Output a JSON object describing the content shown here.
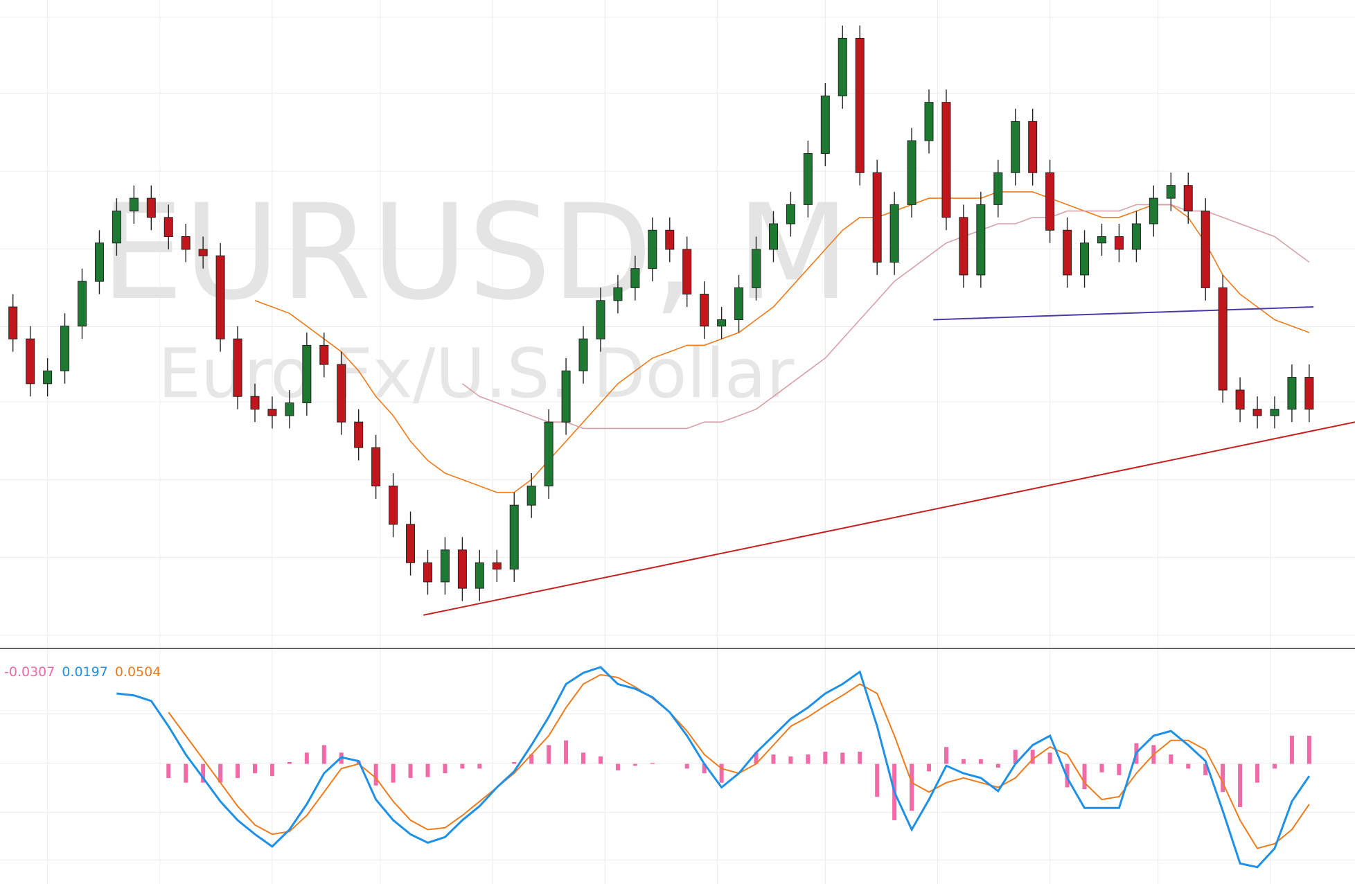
{
  "chart_data": [
    {
      "type": "candlestick",
      "title": "EURUSD, M",
      "subtitle": "Euro Fx/U.S. Dollar",
      "xlim": [
        -0.75,
        77.65
      ],
      "ylim": [
        0,
        100
      ],
      "up_color": "#1e7a32",
      "down_color": "#c0161c",
      "open": [
        52,
        47,
        40,
        42,
        49,
        56,
        62,
        67,
        69,
        66,
        63,
        61,
        60,
        47,
        38,
        36,
        35,
        37,
        46,
        43,
        34,
        30,
        24,
        18,
        12,
        9,
        14,
        8,
        12,
        11,
        21,
        24,
        34,
        42,
        47,
        53,
        55,
        58,
        64,
        61,
        54,
        49,
        50,
        55,
        61,
        65,
        68,
        76,
        85,
        94,
        73,
        59,
        68,
        78,
        84,
        66,
        57,
        68,
        73,
        81,
        73,
        64,
        57,
        62,
        63,
        61,
        65,
        69,
        71,
        67,
        55,
        39,
        36,
        35,
        36,
        41
      ],
      "high": [
        54,
        49,
        44,
        51,
        58,
        64,
        69,
        71,
        71,
        68,
        65,
        63,
        62,
        49,
        40,
        38,
        39,
        48,
        48,
        45,
        36,
        32,
        26,
        20,
        14,
        16,
        16,
        14,
        14,
        23,
        26,
        36,
        44,
        49,
        55,
        57,
        60,
        66,
        66,
        63,
        56,
        52,
        57,
        63,
        67,
        70,
        78,
        87,
        96,
        96,
        75,
        70,
        80,
        86,
        86,
        68,
        70,
        75,
        83,
        83,
        75,
        66,
        64,
        65,
        65,
        67,
        71,
        73,
        73,
        69,
        57,
        41,
        38,
        38,
        43,
        43
      ],
      "low": [
        45,
        38,
        38,
        40,
        47,
        54,
        60,
        65,
        64,
        61,
        59,
        58,
        45,
        36,
        34,
        33,
        33,
        35,
        41,
        32,
        28,
        22,
        16,
        10,
        7,
        7,
        6,
        6,
        9,
        9,
        19,
        22,
        32,
        40,
        45,
        51,
        53,
        56,
        59,
        52,
        47,
        47,
        48,
        53,
        59,
        63,
        66,
        74,
        83,
        71,
        57,
        57,
        66,
        76,
        64,
        55,
        55,
        66,
        71,
        71,
        62,
        55,
        55,
        60,
        59,
        59,
        63,
        67,
        65,
        53,
        37,
        34,
        33,
        33,
        34,
        34
      ],
      "close": [
        47,
        40,
        42,
        49,
        56,
        62,
        67,
        69,
        66,
        63,
        61,
        60,
        47,
        38,
        36,
        35,
        37,
        46,
        43,
        34,
        30,
        24,
        18,
        12,
        9,
        14,
        8,
        12,
        11,
        21,
        24,
        34,
        42,
        47,
        53,
        55,
        58,
        64,
        61,
        54,
        49,
        50,
        55,
        61,
        65,
        68,
        76,
        85,
        94,
        73,
        59,
        68,
        78,
        84,
        66,
        57,
        68,
        73,
        81,
        73,
        64,
        57,
        62,
        63,
        61,
        65,
        69,
        71,
        67,
        55,
        39,
        36,
        35,
        36,
        41,
        36
      ],
      "overlays": [
        {
          "color": "#f07a1a",
          "values": [
            null,
            null,
            null,
            null,
            null,
            null,
            null,
            null,
            null,
            null,
            null,
            null,
            null,
            null,
            53,
            52,
            51,
            49,
            47,
            45,
            42,
            38,
            35,
            31,
            28,
            26,
            25,
            24,
            23,
            23,
            25,
            28,
            31,
            34,
            37,
            40,
            42,
            44,
            45,
            46,
            46,
            47,
            48,
            50,
            52,
            55,
            58,
            61,
            64,
            66,
            66,
            67,
            68,
            69,
            69,
            69,
            69,
            70,
            70,
            70,
            69,
            68,
            67,
            66,
            66,
            67,
            68,
            68,
            66,
            62,
            57,
            54,
            52,
            50,
            49,
            48
          ]
        },
        {
          "color": "#d8a0a8",
          "values": [
            null,
            null,
            null,
            null,
            null,
            null,
            null,
            null,
            null,
            null,
            null,
            null,
            null,
            null,
            null,
            null,
            null,
            null,
            null,
            null,
            null,
            null,
            null,
            null,
            null,
            null,
            40,
            38,
            37,
            36,
            35,
            34,
            34,
            33,
            33,
            33,
            33,
            33,
            33,
            33,
            34,
            34,
            35,
            36,
            38,
            40,
            42,
            44,
            47,
            50,
            53,
            56,
            58,
            60,
            62,
            63,
            64,
            65,
            65,
            66,
            66,
            67,
            67,
            67,
            67,
            68,
            68,
            68,
            67,
            67,
            66,
            65,
            64,
            63,
            61,
            59
          ]
        }
      ],
      "trendline": {
        "color": "#c81e1e",
        "x": [
          23.75,
          77.65
        ],
        "values": [
          3.8,
          34
        ]
      },
      "level": {
        "color": "#4a3aa8",
        "x": [
          53.25,
          75.25
        ],
        "values": [
          50,
          52
        ]
      }
    },
    {
      "type": "macd",
      "xlim": [
        -0.75,
        77.65
      ],
      "ylim": [
        -1.25,
        1.2
      ],
      "readout": {
        "histogram": -0.0307,
        "macd": 0.0197,
        "signal": 0.0504
      },
      "histogram": {
        "color": "#f06aa8",
        "values": [
          null,
          null,
          null,
          null,
          null,
          null,
          null,
          null,
          null,
          -0.15,
          -0.2,
          -0.2,
          -0.2,
          -0.15,
          -0.1,
          -0.13,
          0.02,
          0.12,
          0.2,
          0.12,
          0.03,
          -0.23,
          -0.2,
          -0.15,
          -0.14,
          -0.1,
          -0.05,
          -0.05,
          0.0,
          0.02,
          0.1,
          0.2,
          0.25,
          0.12,
          0.08,
          -0.07,
          -0.02,
          0.01,
          0.0,
          -0.05,
          -0.1,
          -0.2,
          0.0,
          0.12,
          0.1,
          0.08,
          0.1,
          0.13,
          0.12,
          0.13,
          -0.35,
          -0.6,
          -0.5,
          -0.08,
          0.18,
          0.05,
          0.05,
          -0.04,
          0.15,
          0.15,
          0.12,
          -0.25,
          -0.27,
          -0.09,
          -0.12,
          0.22,
          0.2,
          0.1,
          -0.05,
          -0.12,
          -0.3,
          -0.46,
          -0.2,
          -0.05,
          0.3,
          0.3
        ]
      },
      "macd": {
        "color": "#1e90e8",
        "values": [
          null,
          null,
          null,
          null,
          null,
          null,
          0.75,
          0.73,
          0.67,
          0.4,
          0.1,
          -0.15,
          -0.4,
          -0.6,
          -0.75,
          -0.88,
          -0.7,
          -0.43,
          -0.1,
          0.07,
          0.03,
          -0.38,
          -0.6,
          -0.75,
          -0.84,
          -0.78,
          -0.6,
          -0.45,
          -0.25,
          -0.08,
          0.2,
          0.5,
          0.85,
          0.97,
          1.03,
          0.85,
          0.8,
          0.71,
          0.55,
          0.3,
          0.0,
          -0.25,
          -0.1,
          0.12,
          0.3,
          0.48,
          0.6,
          0.75,
          0.85,
          0.98,
          0.4,
          -0.3,
          -0.7,
          -0.38,
          -0.02,
          -0.1,
          -0.15,
          -0.29,
          0.0,
          0.2,
          0.3,
          -0.15,
          -0.47,
          -0.47,
          -0.47,
          0.12,
          0.3,
          0.35,
          0.2,
          0.03,
          -0.5,
          -1.06,
          -1.1,
          -0.9,
          -0.4,
          -0.13
        ]
      },
      "signal": {
        "color": "#f07a1a",
        "values": [
          null,
          null,
          null,
          null,
          null,
          null,
          null,
          null,
          null,
          0.55,
          0.3,
          0.05,
          -0.2,
          -0.45,
          -0.65,
          -0.75,
          -0.72,
          -0.55,
          -0.3,
          -0.05,
          0.0,
          -0.15,
          -0.4,
          -0.6,
          -0.7,
          -0.68,
          -0.55,
          -0.4,
          -0.25,
          -0.1,
          0.1,
          0.3,
          0.6,
          0.85,
          0.95,
          0.92,
          0.82,
          0.7,
          0.55,
          0.35,
          0.1,
          -0.05,
          -0.1,
          0.0,
          0.2,
          0.4,
          0.5,
          0.62,
          0.73,
          0.85,
          0.75,
          0.3,
          -0.2,
          -0.3,
          -0.2,
          -0.15,
          -0.2,
          -0.25,
          -0.15,
          0.05,
          0.18,
          0.1,
          -0.2,
          -0.38,
          -0.35,
          -0.1,
          0.1,
          0.25,
          0.25,
          0.15,
          -0.2,
          -0.6,
          -0.9,
          -0.85,
          -0.7,
          -0.43
        ]
      }
    }
  ]
}
